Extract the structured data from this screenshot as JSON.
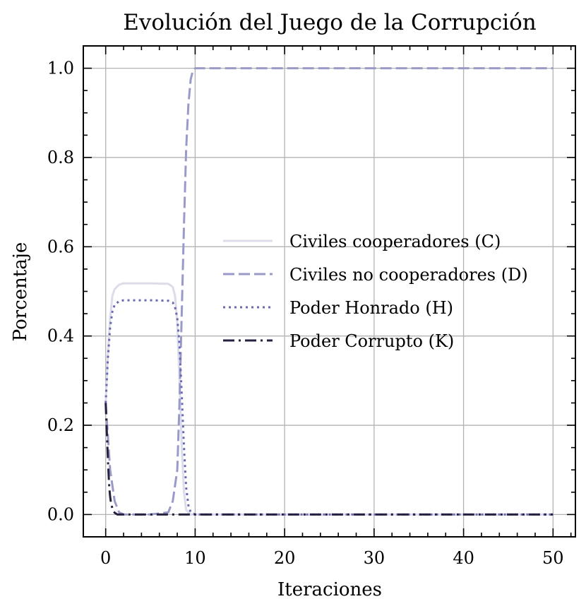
{
  "chart_data": {
    "type": "line",
    "title": "Evolución del Juego de la Corrupción",
    "xlabel": "Iteraciones",
    "ylabel": "Porcentaje",
    "xlim": [
      -2.5,
      52.5
    ],
    "ylim": [
      -0.05,
      1.05
    ],
    "xticks": [
      0,
      10,
      20,
      30,
      40,
      50
    ],
    "yticks": [
      0.0,
      0.2,
      0.4,
      0.6,
      0.8,
      1.0
    ],
    "xtick_labels": [
      "0",
      "10",
      "20",
      "30",
      "40",
      "50"
    ],
    "ytick_labels": [
      "0.0",
      "0.2",
      "0.4",
      "0.6",
      "0.8",
      "1.0"
    ],
    "grid": true,
    "legend_position": "center-right",
    "series": [
      {
        "name": "Civiles cooperadores (C)",
        "color": "#dcdcea",
        "dash": "solid",
        "x": [
          0,
          0.25,
          0.5,
          0.75,
          1,
          1.5,
          2,
          3,
          5,
          7,
          7.5,
          7.75,
          8,
          8.25,
          8.5,
          8.75,
          9,
          9.5,
          10,
          50
        ],
        "y": [
          0.25,
          0.36,
          0.44,
          0.49,
          0.505,
          0.515,
          0.518,
          0.518,
          0.518,
          0.517,
          0.51,
          0.49,
          0.43,
          0.3,
          0.15,
          0.05,
          0.01,
          0.0,
          0.0,
          0.0
        ]
      },
      {
        "name": "Civiles no cooperadores (D)",
        "color": "#9a9ac8",
        "dash": "dashed",
        "x": [
          0,
          0.5,
          1,
          1.5,
          2,
          3,
          5,
          7,
          7.5,
          8,
          8.25,
          8.5,
          8.75,
          9,
          9.25,
          9.5,
          9.75,
          10,
          11,
          50
        ],
        "y": [
          0.25,
          0.1,
          0.03,
          0.005,
          0.0,
          0.0,
          0.0,
          0.005,
          0.03,
          0.1,
          0.25,
          0.45,
          0.65,
          0.82,
          0.92,
          0.975,
          0.995,
          1.0,
          1.0,
          1.0
        ]
      },
      {
        "name": "Poder Honrado (H)",
        "color": "#6a6ab4",
        "dash": "dotted",
        "x": [
          0,
          0.25,
          0.5,
          0.75,
          1,
          1.5,
          2,
          3,
          5,
          7,
          7.5,
          7.75,
          8,
          8.25,
          8.5,
          8.75,
          9,
          9.25,
          9.5,
          10,
          50
        ],
        "y": [
          0.25,
          0.35,
          0.42,
          0.455,
          0.47,
          0.478,
          0.48,
          0.48,
          0.48,
          0.479,
          0.475,
          0.465,
          0.44,
          0.38,
          0.27,
          0.15,
          0.06,
          0.02,
          0.005,
          0.0,
          0.0
        ]
      },
      {
        "name": "Poder Corrupto (K)",
        "color": "#26213f",
        "dash": "dashdot",
        "x": [
          0,
          0.1,
          0.2,
          0.3,
          0.4,
          0.5,
          0.6,
          0.8,
          1,
          1.3,
          2,
          50
        ],
        "y": [
          0.25,
          0.2,
          0.15,
          0.1,
          0.06,
          0.04,
          0.025,
          0.01,
          0.004,
          0.0,
          0.0,
          0.0
        ]
      }
    ]
  }
}
